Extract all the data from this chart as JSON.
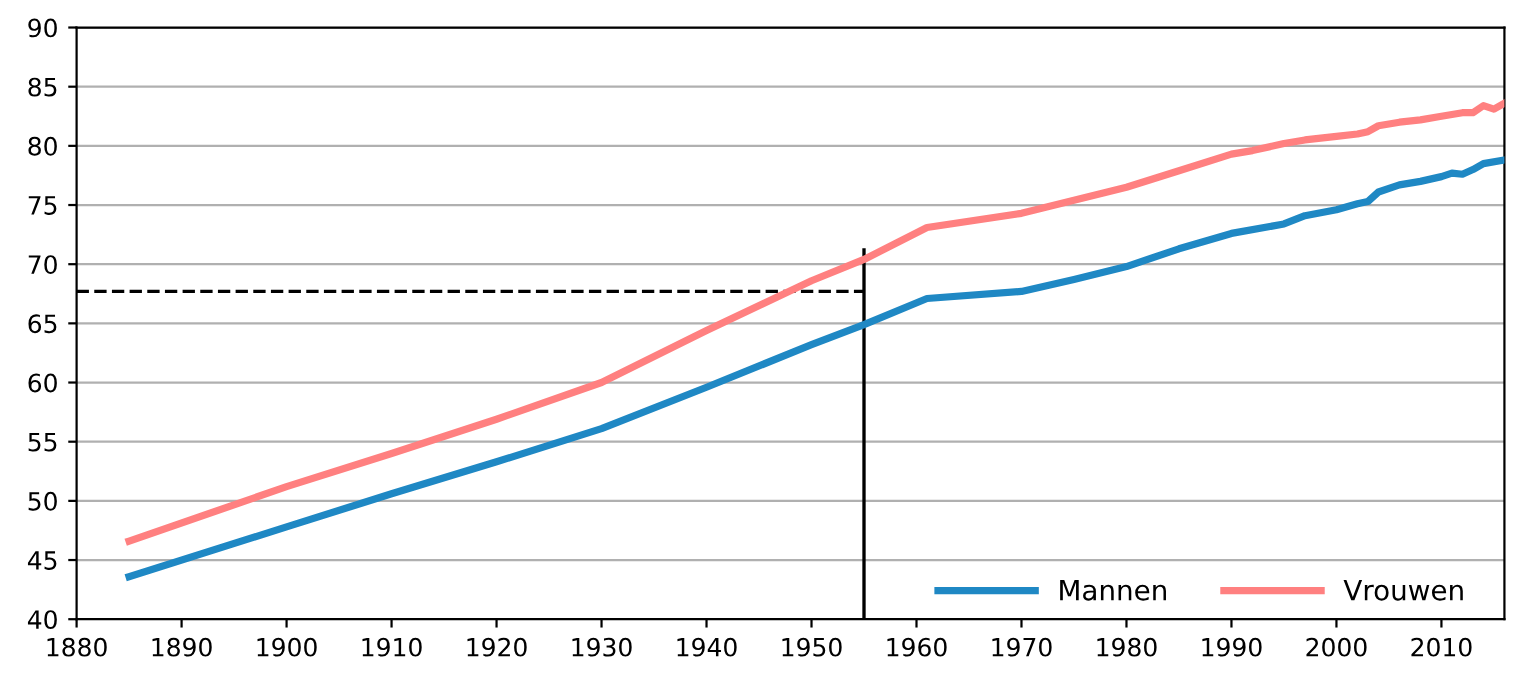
{
  "chart_data": {
    "type": "line",
    "xlim": [
      1880,
      2016
    ],
    "xticks": [
      1880,
      1890,
      1900,
      1910,
      1920,
      1930,
      1940,
      1950,
      1960,
      1970,
      1980,
      1990,
      2000,
      2010
    ],
    "ylim": [
      40,
      90
    ],
    "yticks": [
      40,
      45,
      50,
      55,
      60,
      65,
      70,
      75,
      80,
      85,
      90
    ],
    "grid": "y",
    "legend": "bottom right",
    "line_style": "solid",
    "marker": "none",
    "series": [
      {
        "name": "Mannen",
        "color": "#1f88c4",
        "x": [
          1885,
          1900,
          1910,
          1920,
          1930,
          1940,
          1950,
          1955,
          1961,
          1970,
          1975,
          1980,
          1985,
          1990,
          1995,
          1997,
          2000,
          2002,
          2003,
          2004,
          2006,
          2008,
          2010,
          2011,
          2012,
          2013,
          2014,
          2016
        ],
        "values": [
          43.6,
          47.8,
          50.6,
          53.3,
          56.1,
          59.6,
          63.2,
          64.9,
          67.1,
          67.7,
          68.7,
          69.8,
          71.3,
          72.6,
          73.4,
          74.1,
          74.6,
          75.1,
          75.3,
          76.1,
          76.7,
          77.0,
          77.4,
          77.7,
          77.6,
          78.0,
          78.5,
          78.8
        ]
      },
      {
        "name": "Vrouwen",
        "color": "#ff8080",
        "x": [
          1885,
          1900,
          1910,
          1920,
          1930,
          1940,
          1950,
          1955,
          1961,
          1970,
          1975,
          1980,
          1985,
          1990,
          1992,
          1995,
          1997,
          2000,
          2002,
          2003,
          2004,
          2006,
          2008,
          2010,
          2012,
          2013,
          2014,
          2015,
          2016
        ],
        "values": [
          46.6,
          51.2,
          54.0,
          56.9,
          60.0,
          64.4,
          68.6,
          70.4,
          73.1,
          74.3,
          75.4,
          76.5,
          77.9,
          79.3,
          79.6,
          80.2,
          80.5,
          80.8,
          81.0,
          81.2,
          81.7,
          82.0,
          82.2,
          82.5,
          82.8,
          82.8,
          83.4,
          83.1,
          83.6
        ]
      },
      {
        "color": "#000000",
        "line_style": "dashed",
        "x": [
          1880,
          1955
        ],
        "values": [
          67.7,
          67.7
        ]
      },
      {
        "color": "#000000",
        "x": [
          1955,
          1955
        ],
        "values": [
          40,
          71.2
        ]
      }
    ]
  }
}
